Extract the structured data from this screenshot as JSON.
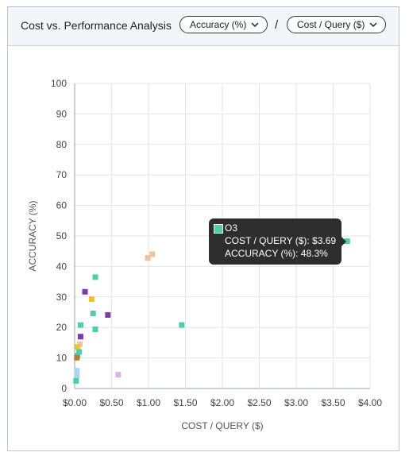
{
  "header": {
    "title": "Cost vs. Performance Analysis",
    "y_metric_label": "Accuracy (%)",
    "separator": "/",
    "x_metric_label": "Cost / Query ($)"
  },
  "tooltip": {
    "series": "O3",
    "x_line": "COST / QUERY ($): $3.69",
    "y_line": "ACCURACY (%): 48.3%",
    "color": "#4fcfa6"
  },
  "chart_data": {
    "type": "scatter",
    "xlabel": "COST / QUERY ($)",
    "ylabel": "ACCURACY (%)",
    "xlim": [
      0,
      4
    ],
    "ylim": [
      0,
      100
    ],
    "x_ticks": [
      "$0.00",
      "$0.50",
      "$1.00",
      "$1.50",
      "$2.00",
      "$2.50",
      "$3.00",
      "$3.50",
      "$4.00"
    ],
    "y_ticks": [
      "0",
      "10",
      "20",
      "30",
      "40",
      "50",
      "60",
      "70",
      "80",
      "90",
      "100"
    ],
    "grid": true,
    "points": [
      {
        "x": 3.69,
        "y": 48.3,
        "color": "#4fcfa6"
      },
      {
        "x": 1.05,
        "y": 44.0,
        "color": "#f2c29b"
      },
      {
        "x": 0.99,
        "y": 42.8,
        "color": "#f2c29b"
      },
      {
        "x": 0.28,
        "y": 36.5,
        "color": "#4fcfa6"
      },
      {
        "x": 0.14,
        "y": 31.7,
        "color": "#7e3aa8"
      },
      {
        "x": 0.23,
        "y": 29.3,
        "color": "#f2c12e"
      },
      {
        "x": 0.25,
        "y": 24.6,
        "color": "#4fcfa6"
      },
      {
        "x": 0.45,
        "y": 24.1,
        "color": "#7e3aa8"
      },
      {
        "x": 1.45,
        "y": 20.8,
        "color": "#4fcfa6"
      },
      {
        "x": 0.08,
        "y": 20.8,
        "color": "#4fcfa6"
      },
      {
        "x": 0.28,
        "y": 19.4,
        "color": "#4fcfa6"
      },
      {
        "x": 0.08,
        "y": 17.0,
        "color": "#7e3aa8"
      },
      {
        "x": 0.07,
        "y": 14.5,
        "color": "#f2c29b"
      },
      {
        "x": 0.04,
        "y": 13.6,
        "color": "#f2c12e"
      },
      {
        "x": 0.06,
        "y": 12.0,
        "color": "#4fcfa6"
      },
      {
        "x": 0.04,
        "y": 10.8,
        "color": "#4fcfa6"
      },
      {
        "x": 0.03,
        "y": 10.1,
        "color": "#c07a2c"
      },
      {
        "x": 0.59,
        "y": 4.5,
        "color": "#d9b3ea"
      },
      {
        "x": 0.03,
        "y": 5.8,
        "color": "#a9d4f2"
      },
      {
        "x": 0.03,
        "y": 4.3,
        "color": "#a9d4f2"
      },
      {
        "x": 0.02,
        "y": 2.5,
        "color": "#4fcfa6"
      }
    ]
  }
}
